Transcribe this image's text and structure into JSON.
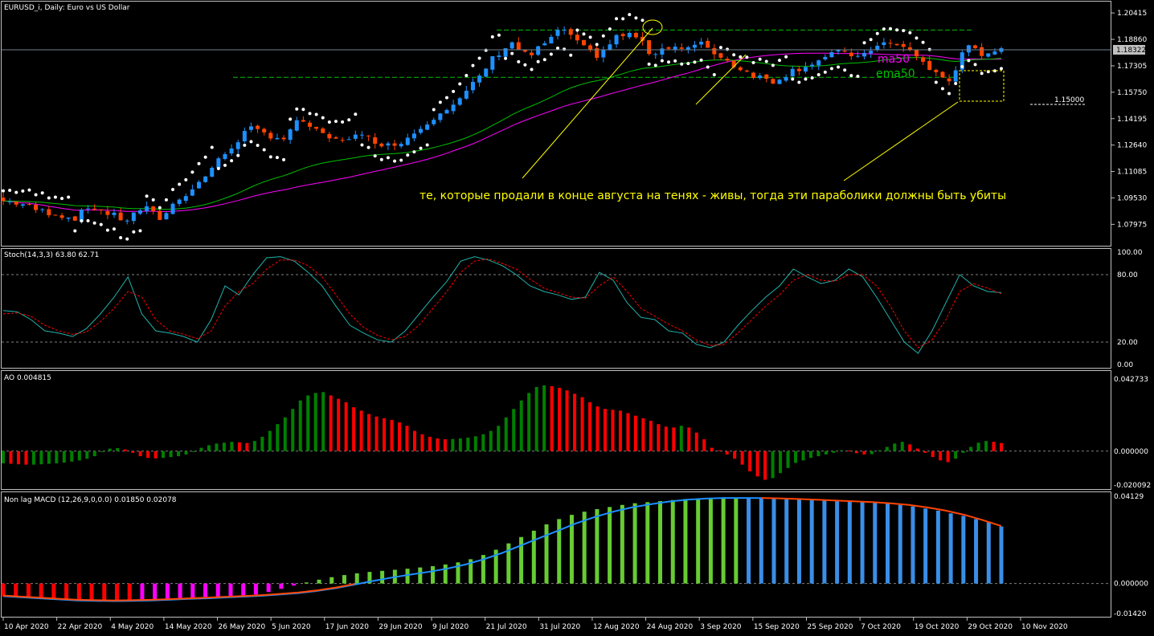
{
  "window": {
    "main_title": "EURUSD_i, Daily:  Euro vs US Dollar",
    "stoch_title": "Stoch(14,3,3) 63.80 62.71",
    "ao_title": "AO 0.004815",
    "macd_title": "Non lag MACD (12,26,9,0,0.0) 0.01850 0.02078"
  },
  "annotations": {
    "comment": "те, которые продали в конце августа на тенях - живы, тогда эти параболики должны быть убиты",
    "ma50_label": "ma50",
    "ema50_label": "ema50",
    "level_label": "1.15000",
    "current_price": "1.18322"
  },
  "colors": {
    "background": "#000000",
    "bull_candle": "#1e90ff",
    "bear_candle": "#ff4500",
    "sar": "#ffffff",
    "ma50": "#ff00ff",
    "ema50": "#00c000",
    "stoch_main": "#20b2aa",
    "stoch_signal": "#ff0000",
    "ao_up": "#008000",
    "ao_down": "#ff0000",
    "macd_line": "#1e90ff",
    "macd_signal": "#ff4500",
    "annotation": "#ffff00",
    "grid_dashed": "#808080"
  },
  "chart_data": [
    {
      "type": "candlestick",
      "name": "EURUSD_i",
      "title": "EURUSD_i, Daily:  Euro vs US Dollar",
      "ylim": [
        1.07,
        1.208
      ],
      "y_ticks": [
        "1.20415",
        "1.18860",
        "1.17305",
        "1.15750",
        "1.14195",
        "1.12640",
        "1.11085",
        "1.09530",
        "1.07975"
      ],
      "x_ticks": [
        "10 Apr 2020",
        "22 Apr 2020",
        "4 May 2020",
        "14 May 2020",
        "26 May 2020",
        "5 Jun 2020",
        "17 Jun 2020",
        "29 Jun 2020",
        "9 Jul 2020",
        "21 Jul 2020",
        "31 Jul 2020",
        "12 Aug 2020",
        "24 Aug 2020",
        "3 Sep 2020",
        "15 Sep 2020",
        "25 Sep 2020",
        "7 Oct 2020",
        "19 Oct 2020",
        "29 Oct 2020",
        "10 Nov 2020"
      ],
      "close_anchors": [
        1.0935,
        1.092,
        1.088,
        1.086,
        1.083,
        1.0905,
        1.086,
        1.082,
        1.09,
        1.083,
        1.095,
        1.102,
        1.114,
        1.125,
        1.136,
        1.133,
        1.13,
        1.142,
        1.133,
        1.129,
        1.132,
        1.13,
        1.126,
        1.13,
        1.138,
        1.147,
        1.152,
        1.164,
        1.178,
        1.187,
        1.178,
        1.187,
        1.195,
        1.184,
        1.179,
        1.19,
        1.192,
        1.18,
        1.185,
        1.183,
        1.186,
        1.178,
        1.172,
        1.167,
        1.164,
        1.17,
        1.174,
        1.178,
        1.182,
        1.177,
        1.187,
        1.185,
        1.181,
        1.17,
        1.164,
        1.184,
        1.18,
        1.184
      ],
      "horizontal_levels": [
        1.1941,
        1.1663,
        1.15
      ]
    },
    {
      "type": "line",
      "name": "Stoch(14,3,3)",
      "ylim": [
        0,
        100
      ],
      "y_ticks": [
        "100.00",
        "80.00",
        "20.00",
        "0.00"
      ],
      "levels": [
        80,
        20
      ],
      "series": [
        {
          "values": [
            48,
            47,
            40,
            30,
            28,
            25,
            32,
            45,
            60,
            78,
            45,
            30,
            28,
            25,
            20,
            40,
            70,
            62,
            80,
            95,
            96,
            92,
            82,
            70,
            52,
            35,
            28,
            22,
            20,
            30,
            45,
            60,
            74,
            92,
            96,
            93,
            88,
            80,
            70,
            65,
            62,
            58,
            60,
            82,
            75,
            55,
            42,
            40,
            30,
            28,
            18,
            15,
            20,
            35,
            48,
            60,
            70,
            85,
            78,
            72,
            75,
            85,
            78,
            60,
            40,
            20,
            10,
            30,
            55,
            80,
            70,
            65,
            64
          ]
        },
        {
          "values": [
            45,
            46,
            43,
            35,
            30,
            27,
            29,
            38,
            50,
            65,
            60,
            40,
            30,
            27,
            23,
            30,
            52,
            65,
            72,
            85,
            93,
            93,
            88,
            78,
            62,
            45,
            33,
            26,
            22,
            25,
            35,
            50,
            65,
            82,
            92,
            94,
            90,
            85,
            76,
            68,
            64,
            60,
            59,
            70,
            78,
            65,
            50,
            43,
            36,
            30,
            22,
            17,
            18,
            28,
            40,
            52,
            62,
            75,
            80,
            75,
            74,
            80,
            80,
            70,
            52,
            30,
            15,
            22,
            40,
            65,
            72,
            68,
            63
          ]
        }
      ]
    },
    {
      "type": "bar",
      "name": "AO",
      "ylim": [
        -0.020092,
        0.042733
      ],
      "y_ticks": [
        "0.042733",
        "0.000000",
        "-0.020092"
      ],
      "values": [
        -0.0072,
        -0.0075,
        -0.0078,
        -0.008,
        -0.008,
        -0.0078,
        -0.0075,
        -0.0072,
        -0.0068,
        -0.0062,
        -0.0055,
        -0.0045,
        -0.003,
        -0.0005,
        0.0015,
        0.0018,
        0.001,
        -0.001,
        -0.003,
        -0.004,
        -0.0043,
        -0.004,
        -0.0035,
        -0.003,
        -0.002,
        -0.0005,
        0.002,
        0.0035,
        0.0045,
        0.005,
        0.0055,
        0.0052,
        0.0048,
        0.006,
        0.0085,
        0.012,
        0.016,
        0.02,
        0.025,
        0.03,
        0.033,
        0.0345,
        0.035,
        0.033,
        0.031,
        0.029,
        0.026,
        0.024,
        0.022,
        0.0205,
        0.0195,
        0.0185,
        0.017,
        0.015,
        0.012,
        0.01,
        0.0085,
        0.0075,
        0.007,
        0.0072,
        0.0075,
        0.008,
        0.0088,
        0.01,
        0.012,
        0.015,
        0.02,
        0.025,
        0.03,
        0.0345,
        0.038,
        0.039,
        0.0385,
        0.0375,
        0.036,
        0.034,
        0.032,
        0.029,
        0.0265,
        0.025,
        0.0245,
        0.024,
        0.0225,
        0.021,
        0.0195,
        0.018,
        0.016,
        0.0145,
        0.014,
        0.015,
        0.014,
        0.011,
        0.007,
        0.002,
        0.0005,
        -0.002,
        -0.0045,
        -0.008,
        -0.012,
        -0.015,
        -0.017,
        -0.016,
        -0.013,
        -0.01,
        -0.007,
        -0.0055,
        -0.004,
        -0.003,
        -0.002,
        -0.001,
        0.0005,
        0.0003,
        -0.0012,
        -0.002,
        -0.0018,
        0.0005,
        0.0025,
        0.0045,
        0.0055,
        0.004,
        0.0015,
        -0.001,
        -0.0035,
        -0.0055,
        -0.0065,
        -0.0045,
        -0.001,
        0.0025,
        0.005,
        0.006,
        0.0055,
        0.0048
      ]
    },
    {
      "type": "bar",
      "name": "Non lag MACD",
      "ylim": [
        -0.0142,
        0.04129
      ],
      "y_ticks": [
        "0.04129",
        "0.000000",
        "-0.01420"
      ],
      "histogram": [
        -0.006,
        -0.0062,
        -0.0065,
        -0.0068,
        -0.0071,
        -0.0074,
        -0.0077,
        -0.008,
        -0.0082,
        -0.0083,
        -0.0083,
        -0.0082,
        -0.008,
        -0.0078,
        -0.0076,
        -0.0074,
        -0.0072,
        -0.007,
        -0.0066,
        -0.006,
        -0.0052,
        -0.004,
        -0.0025,
        -0.001,
        0.0005,
        0.0018,
        0.003,
        0.004,
        0.0048,
        0.0055,
        0.006,
        0.0065,
        0.007,
        0.0076,
        0.0082,
        0.009,
        0.01,
        0.0115,
        0.0135,
        0.016,
        0.019,
        0.022,
        0.025,
        0.028,
        0.0305,
        0.0325,
        0.034,
        0.0352,
        0.0362,
        0.0372,
        0.038,
        0.0385,
        0.039,
        0.0395,
        0.04,
        0.0402,
        0.0404,
        0.0405,
        0.0405,
        0.0404,
        0.0403,
        0.0402,
        0.04,
        0.0398,
        0.0395,
        0.0393,
        0.039,
        0.0388,
        0.0385,
        0.0382,
        0.0378,
        0.0372,
        0.0365,
        0.0355,
        0.0345,
        0.0332,
        0.032,
        0.0305,
        0.029,
        0.027
      ],
      "series": [
        {
          "values": [
            -0.006,
            -0.0065,
            -0.007,
            -0.0075,
            -0.008,
            -0.0082,
            -0.0083,
            -0.0082,
            -0.008,
            -0.0077,
            -0.0073,
            -0.007,
            -0.0066,
            -0.0062,
            -0.0058,
            -0.0052,
            -0.0045,
            -0.0035,
            -0.0022,
            -0.0005,
            0.0012,
            0.0028,
            0.0042,
            0.0055,
            0.007,
            0.009,
            0.0115,
            0.0145,
            0.018,
            0.0215,
            0.025,
            0.0285,
            0.0315,
            0.034,
            0.036,
            0.0375,
            0.0388,
            0.0397,
            0.0402,
            0.0405,
            0.0405,
            0.0404
          ]
        },
        {
          "values": [
            0.0405,
            0.0403,
            0.04,
            0.0397,
            0.0393,
            0.0389,
            0.0385,
            0.038,
            0.0372,
            0.036,
            0.0345,
            0.0325,
            0.03,
            0.0272
          ]
        }
      ]
    }
  ]
}
